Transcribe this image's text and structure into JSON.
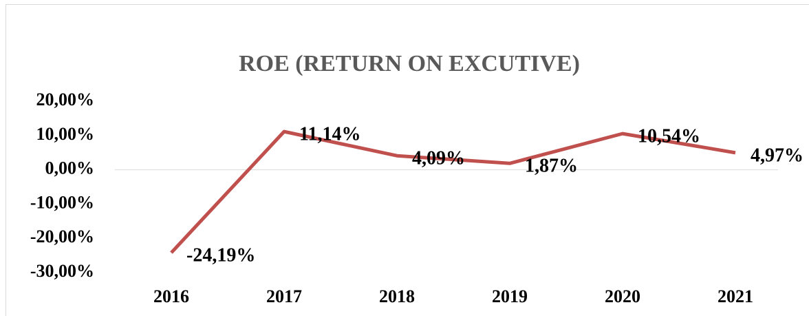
{
  "chart_data": {
    "type": "line",
    "title": "ROE (RETURN ON EXCUTIVE)",
    "categories": [
      "2016",
      "2017",
      "2018",
      "2019",
      "2020",
      "2021"
    ],
    "series": [
      {
        "name": "ROE",
        "color": "#c0504d",
        "values": [
          -24.19,
          11.14,
          4.09,
          1.87,
          10.54,
          4.97
        ],
        "value_labels": [
          "-24,19%",
          "11,14%",
          "4,09%",
          "1,87%",
          "10,54%",
          "4,97%"
        ]
      }
    ],
    "ylim": [
      -30,
      20
    ],
    "yticks": [
      {
        "value": 20,
        "label": "20,00%"
      },
      {
        "value": 10,
        "label": "10,00%"
      },
      {
        "value": 0,
        "label": "0,00%"
      },
      {
        "value": -10,
        "label": "-10,00%"
      },
      {
        "value": -20,
        "label": "-20,00%"
      },
      {
        "value": -30,
        "label": "-30,00%"
      }
    ],
    "grid": false
  }
}
